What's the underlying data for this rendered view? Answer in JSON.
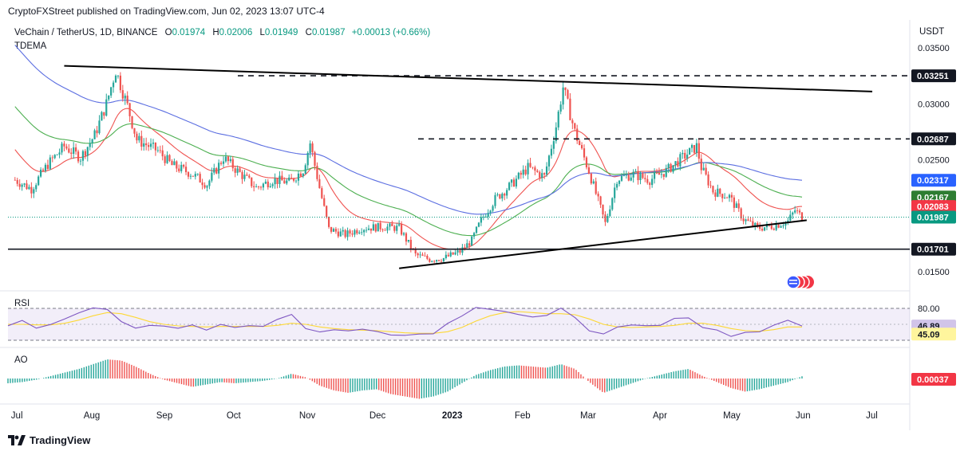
{
  "header": {
    "publisher_line": "CryptoFXStreet published on TradingView.com, Jun 02, 2023 13:07 UTC-4"
  },
  "legend": {
    "symbol": "VeChain / TetherUS, 1D, BINANCE",
    "o_label": "O",
    "o_value": "0.01974",
    "h_label": "H",
    "h_value": "0.02006",
    "l_label": "L",
    "l_value": "0.01949",
    "c_label": "C",
    "c_value": "0.01987",
    "change": "+0.00013 (+0.66%)",
    "indicator": "TDEMA",
    "currency": "USDT"
  },
  "panes": {
    "rsi_label": "RSI",
    "ao_label": "AO"
  },
  "footer": {
    "brand": "TradingView"
  },
  "colors": {
    "up": "#26a69a",
    "down": "#ef5350",
    "ema_red": "#ef5350",
    "ema_green": "#4caf50",
    "ema_blue": "#5b6ee1",
    "rsi_line": "#7e57c2",
    "rsi_ma": "#fdd835",
    "trend": "#000000"
  },
  "chart_data": {
    "type": "candlestick",
    "symbol": "VETUSDT",
    "timeframe": "1D",
    "x_axis_labels": [
      "Jul",
      "Aug",
      "Sep",
      "Oct",
      "Nov",
      "Dec",
      "2023",
      "Feb",
      "Mar",
      "Apr",
      "May",
      "Jun",
      "Jul"
    ],
    "y_axis_ticks": [
      "0.03500",
      "0.03000",
      "0.02500",
      "0.01500"
    ],
    "ylim": [
      0.0135,
      0.0375
    ],
    "close_series": [
      {
        "t": "2022-07-01",
        "v": 0.0232
      },
      {
        "t": "2022-07-08",
        "v": 0.0224
      },
      {
        "t": "2022-07-15",
        "v": 0.0246
      },
      {
        "t": "2022-07-22",
        "v": 0.0262
      },
      {
        "t": "2022-07-29",
        "v": 0.0252
      },
      {
        "t": "2022-08-04",
        "v": 0.0272
      },
      {
        "t": "2022-08-09",
        "v": 0.03
      },
      {
        "t": "2022-08-13",
        "v": 0.033
      },
      {
        "t": "2022-08-18",
        "v": 0.0298
      },
      {
        "t": "2022-08-22",
        "v": 0.0268
      },
      {
        "t": "2022-08-31",
        "v": 0.0258
      },
      {
        "t": "2022-09-06",
        "v": 0.0245
      },
      {
        "t": "2022-09-14",
        "v": 0.0238
      },
      {
        "t": "2022-09-21",
        "v": 0.0228
      },
      {
        "t": "2022-09-28",
        "v": 0.0252
      },
      {
        "t": "2022-10-05",
        "v": 0.0238
      },
      {
        "t": "2022-10-12",
        "v": 0.0225
      },
      {
        "t": "2022-10-19",
        "v": 0.0232
      },
      {
        "t": "2022-10-26",
        "v": 0.023
      },
      {
        "t": "2022-11-01",
        "v": 0.0241
      },
      {
        "t": "2022-11-04",
        "v": 0.0265
      },
      {
        "t": "2022-11-08",
        "v": 0.0225
      },
      {
        "t": "2022-11-12",
        "v": 0.0188
      },
      {
        "t": "2022-11-19",
        "v": 0.0183
      },
      {
        "t": "2022-11-26",
        "v": 0.0189
      },
      {
        "t": "2022-12-05",
        "v": 0.019
      },
      {
        "t": "2022-12-12",
        "v": 0.0189
      },
      {
        "t": "2022-12-19",
        "v": 0.0165
      },
      {
        "t": "2022-12-25",
        "v": 0.0161
      },
      {
        "t": "2022-12-31",
        "v": 0.0162
      },
      {
        "t": "2023-01-07",
        "v": 0.0168
      },
      {
        "t": "2023-01-12",
        "v": 0.0178
      },
      {
        "t": "2023-01-16",
        "v": 0.0196
      },
      {
        "t": "2023-01-22",
        "v": 0.0215
      },
      {
        "t": "2023-01-29",
        "v": 0.0228
      },
      {
        "t": "2023-02-05",
        "v": 0.0243
      },
      {
        "t": "2023-02-12",
        "v": 0.0235
      },
      {
        "t": "2023-02-17",
        "v": 0.028
      },
      {
        "t": "2023-02-20",
        "v": 0.0315
      },
      {
        "t": "2023-02-25",
        "v": 0.0275
      },
      {
        "t": "2023-03-03",
        "v": 0.024
      },
      {
        "t": "2023-03-10",
        "v": 0.0193
      },
      {
        "t": "2023-03-15",
        "v": 0.0233
      },
      {
        "t": "2023-03-22",
        "v": 0.0237
      },
      {
        "t": "2023-03-29",
        "v": 0.0232
      },
      {
        "t": "2023-04-05",
        "v": 0.024
      },
      {
        "t": "2023-04-12",
        "v": 0.0252
      },
      {
        "t": "2023-04-18",
        "v": 0.0262
      },
      {
        "t": "2023-04-20",
        "v": 0.0243
      },
      {
        "t": "2023-04-25",
        "v": 0.0222
      },
      {
        "t": "2023-05-02",
        "v": 0.0217
      },
      {
        "t": "2023-05-08",
        "v": 0.0197
      },
      {
        "t": "2023-05-14",
        "v": 0.0189
      },
      {
        "t": "2023-05-21",
        "v": 0.0191
      },
      {
        "t": "2023-05-27",
        "v": 0.0195
      },
      {
        "t": "2023-05-30",
        "v": 0.0205
      },
      {
        "t": "2023-06-02",
        "v": 0.01987
      }
    ],
    "moving_averages": [
      {
        "name": "EMA red",
        "color": "#ef5350",
        "last": 0.02083
      },
      {
        "name": "EMA green",
        "color": "#4caf50",
        "last": 0.02167
      },
      {
        "name": "EMA blue",
        "color": "#5b6ee1",
        "last": 0.02317
      }
    ],
    "horizontal_levels": [
      {
        "value": 0.03251,
        "label": "0.03251",
        "style": "dashed"
      },
      {
        "value": 0.02687,
        "label": "0.02687",
        "style": "dashed"
      },
      {
        "value": 0.01701,
        "label": "0.01701",
        "style": "solid"
      }
    ],
    "trendlines": [
      {
        "name": "upper",
        "from": {
          "t": "2022-07-22",
          "v": 0.0334
        },
        "to": {
          "t": "2023-07-02",
          "v": 0.0311
        }
      },
      {
        "name": "lower",
        "from": {
          "t": "2022-12-12",
          "v": 0.0153
        },
        "to": {
          "t": "2023-06-04",
          "v": 0.0196
        }
      }
    ],
    "price_tags": [
      {
        "label": "0.03251",
        "value": 0.03251,
        "bg": "#131722"
      },
      {
        "label": "0.02687",
        "value": 0.02687,
        "bg": "#131722"
      },
      {
        "label": "0.02317",
        "value": 0.02317,
        "bg": "#2962ff"
      },
      {
        "label": "0.02167",
        "value": 0.02167,
        "bg": "#2e7d32"
      },
      {
        "label": "0.02083",
        "value": 0.02083,
        "bg": "#f23645"
      },
      {
        "label": "0.01987",
        "value": 0.01987,
        "bg": "#089981"
      },
      {
        "label": "0.01701",
        "value": 0.01701,
        "bg": "#131722"
      }
    ],
    "rsi": {
      "value": "46.89",
      "ma_value": "45.09",
      "upper_band": "80.00",
      "upper": 80,
      "lower": 20,
      "series": [
        50,
        55,
        45,
        52,
        62,
        70,
        80,
        78,
        55,
        45,
        50,
        45,
        40,
        48,
        42,
        50,
        45,
        47,
        48,
        58,
        66,
        42,
        38,
        40,
        36,
        38,
        36,
        30,
        28,
        30,
        35,
        50,
        66,
        80,
        78,
        72,
        70,
        64,
        66,
        79,
        60,
        40,
        30,
        46,
        48,
        46,
        50,
        60,
        65,
        42,
        38,
        30,
        34,
        38,
        50,
        60,
        46.89
      ],
      "ma_series": [
        50,
        50,
        49,
        49,
        52,
        58,
        66,
        72,
        70,
        63,
        55,
        50,
        47,
        46,
        45,
        46,
        46,
        46,
        46,
        48,
        52,
        50,
        45,
        42,
        40,
        39,
        38,
        36,
        34,
        33,
        33,
        36,
        44,
        56,
        66,
        72,
        74,
        72,
        70,
        70,
        68,
        60,
        50,
        45,
        44,
        45,
        46,
        48,
        52,
        52,
        48,
        42,
        38,
        37,
        40,
        45,
        45.09
      ]
    },
    "ao": {
      "value": "0.00037",
      "series": [
        -0.8,
        -0.6,
        -0.2,
        0.4,
        1.0,
        1.6,
        2.4,
        3.2,
        3.0,
        2.0,
        0.8,
        -0.2,
        -0.8,
        -1.4,
        -1.0,
        -0.6,
        -0.8,
        -0.6,
        -0.4,
        0.0,
        0.8,
        0.2,
        -1.2,
        -2.0,
        -2.4,
        -2.0,
        -1.8,
        -2.6,
        -3.0,
        -3.4,
        -3.0,
        -2.2,
        -0.8,
        0.6,
        1.4,
        2.0,
        2.2,
        2.0,
        1.8,
        2.4,
        1.6,
        -0.6,
        -2.4,
        -1.6,
        -0.8,
        0.0,
        0.6,
        1.2,
        1.6,
        0.4,
        -0.6,
        -1.6,
        -2.2,
        -1.8,
        -1.2,
        -0.6,
        0.37
      ]
    }
  }
}
